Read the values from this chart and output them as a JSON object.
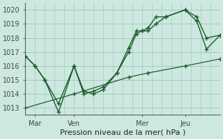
{
  "xlabel": "Pression niveau de la mer( hPa )",
  "background_color": "#cde8e0",
  "grid_color": "#a8c8bc",
  "line_color": "#1a5c2a",
  "xlim": [
    0,
    100
  ],
  "ylim": [
    1012.5,
    1020.5
  ],
  "yticks": [
    1013,
    1014,
    1015,
    1016,
    1017,
    1018,
    1019,
    1020
  ],
  "xtick_positions": [
    5,
    25,
    60,
    82
  ],
  "xtick_labels": [
    "Mar",
    "Ven",
    "Mer",
    "Jeu"
  ],
  "series1_x": [
    0,
    5,
    10,
    17,
    25,
    30,
    35,
    40,
    47,
    53,
    57,
    60,
    63,
    67,
    72,
    82,
    88,
    93,
    100
  ],
  "series1_y": [
    1016.7,
    1016.0,
    1015.0,
    1013.3,
    1016.0,
    1014.0,
    1014.2,
    1014.5,
    1015.5,
    1017.3,
    1018.5,
    1018.5,
    1018.7,
    1019.5,
    1019.5,
    1020.0,
    1019.2,
    1017.2,
    1018.2
  ],
  "series2_x": [
    0,
    5,
    10,
    17,
    25,
    30,
    35,
    40,
    47,
    53,
    57,
    60,
    63,
    67,
    72,
    82,
    88,
    93,
    100
  ],
  "series2_y": [
    1016.7,
    1016.0,
    1015.0,
    1012.7,
    1016.0,
    1014.2,
    1014.0,
    1014.3,
    1015.5,
    1017.0,
    1018.3,
    1018.5,
    1018.5,
    1019.0,
    1019.5,
    1020.0,
    1019.5,
    1018.0,
    1018.2
  ],
  "series3_x": [
    0,
    25,
    53,
    63,
    82,
    100
  ],
  "series3_y": [
    1013.0,
    1014.0,
    1015.2,
    1015.5,
    1016.0,
    1016.5
  ],
  "xlabel_fontsize": 8,
  "tick_fontsize": 7
}
